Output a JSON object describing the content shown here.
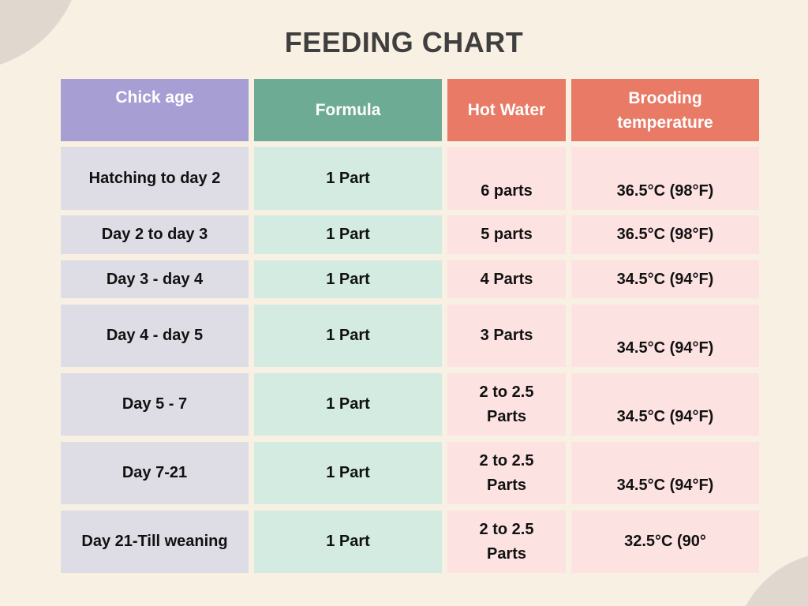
{
  "title": "FEEDING CHART",
  "headers": [
    "Chick age",
    "Formula",
    "Hot Water",
    "Brooding temperature"
  ],
  "rows": [
    [
      "Hatching to day 2",
      "1 Part",
      "6 parts",
      "36.5°C (98°F)"
    ],
    [
      "Day 2 to day 3",
      "1 Part",
      "5 parts",
      "36.5°C (98°F)"
    ],
    [
      "Day 3 - day 4",
      "1 Part",
      "4 Parts",
      "34.5°C (94°F)"
    ],
    [
      "Day 4 - day 5",
      "1 Part",
      "3 Parts",
      "34.5°C (94°F)"
    ],
    [
      "Day 5 - 7",
      "1 Part",
      "2 to 2.5 Parts",
      "34.5°C (94°F)"
    ],
    [
      "Day 7-21",
      "1 Part",
      "2 to 2.5 Parts",
      "34.5°C (94°F)"
    ],
    [
      "Day 21-Till weaning",
      "1 Part",
      "2 to 2.5 Parts",
      "32.5°C (90°"
    ]
  ],
  "colors": {
    "chick_age": "#a79fd4",
    "formula": "#6eab94",
    "hot_water": "#e87a66",
    "temperature": "#e87a66",
    "background": "#f8f0e3"
  }
}
